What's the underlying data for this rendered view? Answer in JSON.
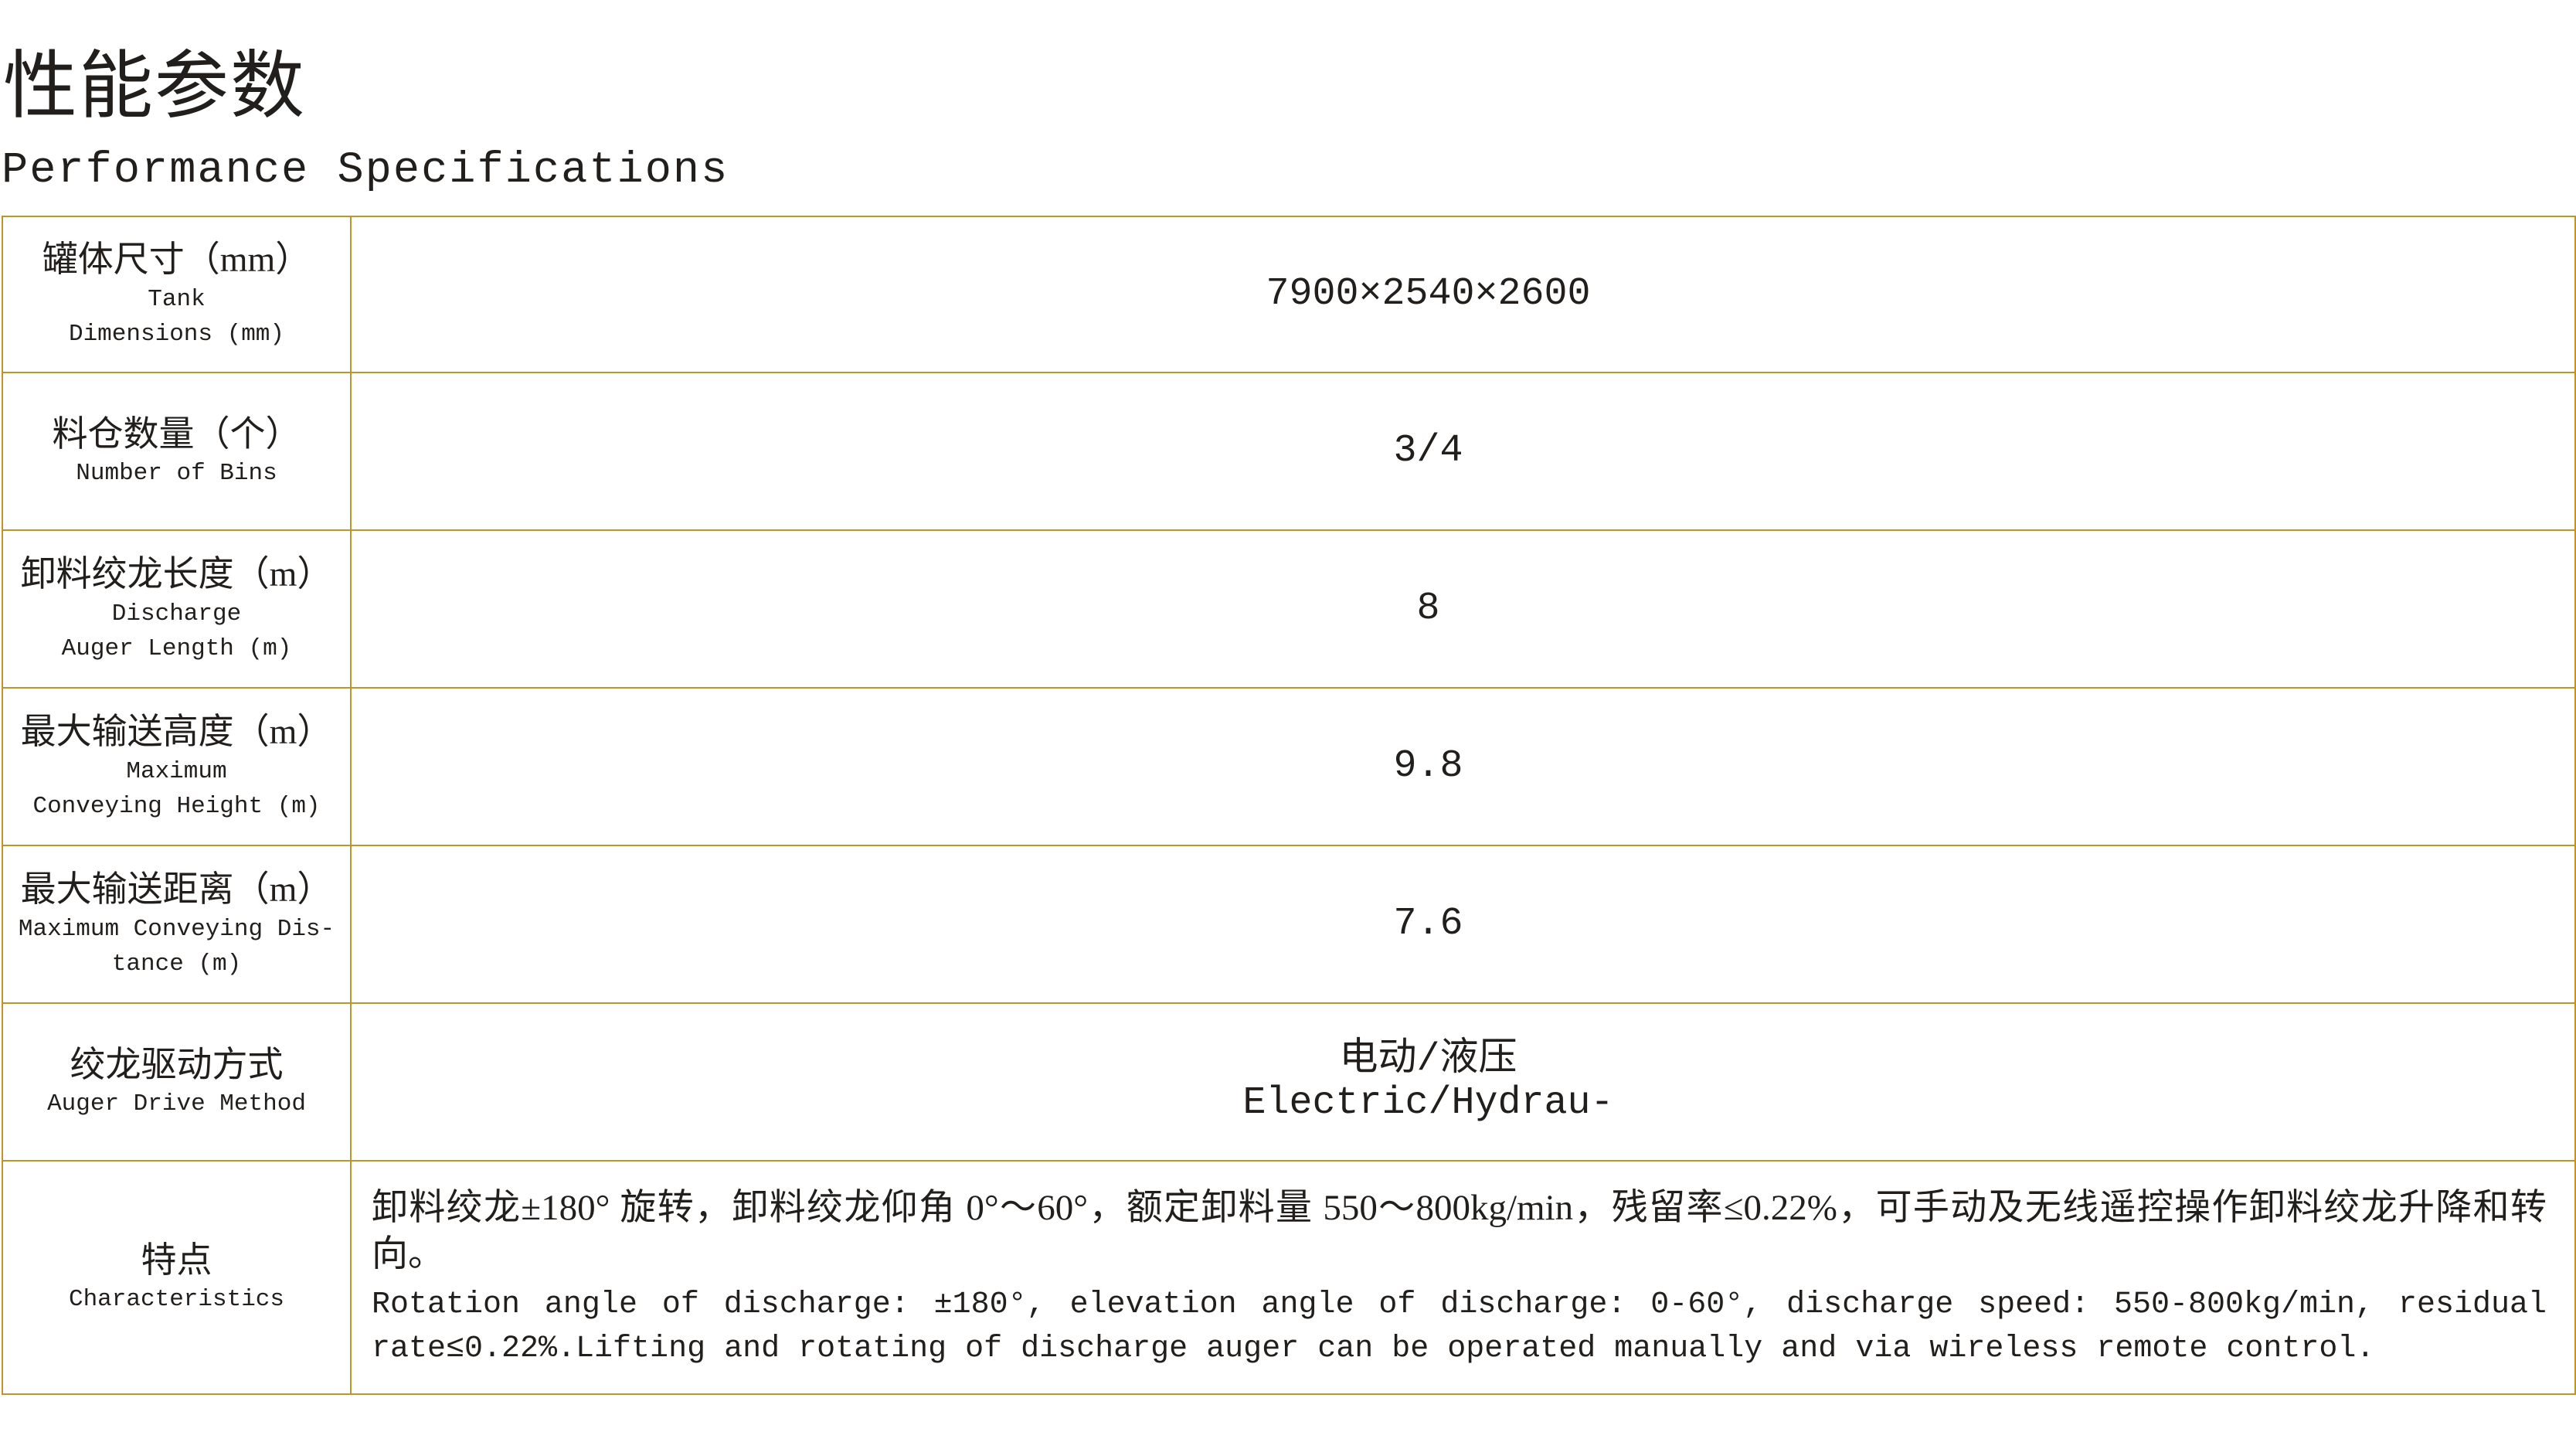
{
  "colors": {
    "table_border": "#c3932b",
    "text": "#221e1b"
  },
  "header": {
    "title_cjk": "性能参数",
    "title_en": "Performance Specifications"
  },
  "table": {
    "rows": [
      {
        "label_cjk": "罐体尺寸（mm）",
        "label_en": "Tank\nDimensions (mm)",
        "value": "7900×2540×2600"
      },
      {
        "label_cjk": "料仓数量（个）",
        "label_en": "Number of Bins",
        "value": "3/4"
      },
      {
        "label_cjk": "卸料绞龙长度（m）",
        "label_en": "Discharge\nAuger Length (m)",
        "value": "8"
      },
      {
        "label_cjk": "最大输送高度（m）",
        "label_en": "Maximum\nConveying Height (m)",
        "value": "9.8"
      },
      {
        "label_cjk": "最大输送距离（m）",
        "label_en": "Maximum Conveying Dis-\ntance (m)",
        "value": "7.6"
      },
      {
        "label_cjk": "绞龙驱动方式",
        "label_en": "Auger Drive Method",
        "value": "电动/液压\nElectric/Hydrau-"
      },
      {
        "label_cjk": "特点",
        "label_en": "Characteristics",
        "value_cjk": "卸料绞龙±180° 旋转，卸料绞龙仰角 0°～60°，额定卸料量 550～800kg/min，残留率≤0.22%，可手动及无线遥控操作卸料绞龙升降和转向。",
        "value_en": "Rotation angle of discharge: ±180°,  elevation angle of  discharge: 0-60°,  discharge speed: 550-800kg/min, residual rate≤0.22%.Lifting and rotating of discharge auger can be operated manually and via wireless remote control."
      }
    ]
  }
}
